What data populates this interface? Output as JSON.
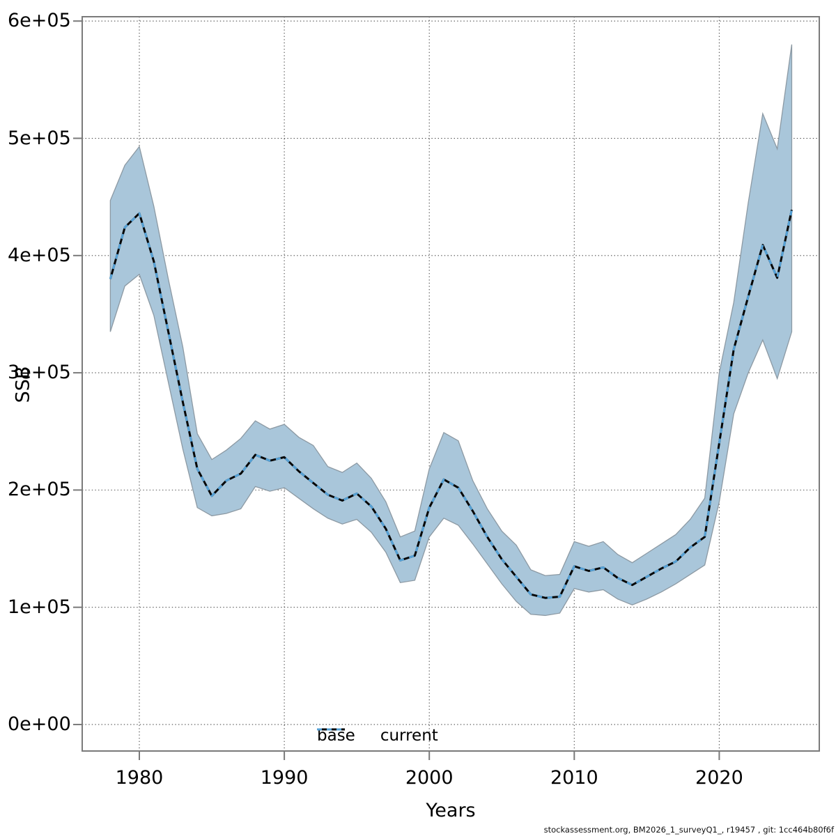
{
  "chart_data": {
    "type": "line",
    "title": "",
    "xlabel": "Years",
    "ylabel": "SSB",
    "grid": "dotted",
    "legend_position": "bottom-center",
    "xlim": [
      1976.06,
      2026.9
    ],
    "ylim": [
      -22600,
      603700
    ],
    "x_ticks": [
      {
        "value": 1980,
        "label": "1980"
      },
      {
        "value": 1990,
        "label": "1990"
      },
      {
        "value": 2000,
        "label": "2000"
      },
      {
        "value": 2010,
        "label": "2010"
      },
      {
        "value": 2020,
        "label": "2020"
      }
    ],
    "y_ticks": [
      {
        "value": 0,
        "label": "0e+00"
      },
      {
        "value": 100000,
        "label": "1e+05"
      },
      {
        "value": 200000,
        "label": "2e+05"
      },
      {
        "value": 300000,
        "label": "3e+05"
      },
      {
        "value": 400000,
        "label": "4e+05"
      },
      {
        "value": 500000,
        "label": "5e+05"
      },
      {
        "value": 600000,
        "label": "6e+05"
      }
    ],
    "x_years": [
      1978,
      1979,
      1980,
      1981,
      1982,
      1983,
      1984,
      1985,
      1986,
      1987,
      1988,
      1989,
      1990,
      1991,
      1992,
      1993,
      1994,
      1995,
      1996,
      1997,
      1998,
      1999,
      2000,
      2001,
      2002,
      2003,
      2004,
      2005,
      2006,
      2007,
      2008,
      2009,
      2010,
      2011,
      2012,
      2013,
      2014,
      2015,
      2016,
      2017,
      2018,
      2019,
      2020,
      2021,
      2022,
      2023,
      2024,
      2025
    ],
    "median": [
      380000,
      424000,
      436000,
      395000,
      335000,
      275000,
      218000,
      195000,
      208000,
      214000,
      230000,
      225000,
      228000,
      216000,
      206000,
      196000,
      191000,
      197000,
      186000,
      167000,
      140000,
      144000,
      185000,
      209000,
      202000,
      182000,
      160000,
      141000,
      126000,
      111000,
      108000,
      109000,
      135000,
      131000,
      134000,
      125000,
      119000,
      126000,
      133000,
      139000,
      151000,
      160000,
      240000,
      320000,
      365000,
      409000,
      381000,
      439000
    ],
    "band_lower": [
      335000,
      374000,
      384000,
      349000,
      292000,
      235000,
      185000,
      178000,
      180000,
      184000,
      203000,
      199000,
      202000,
      193000,
      184000,
      176000,
      171000,
      175000,
      164000,
      147000,
      121000,
      123000,
      160000,
      176000,
      170000,
      154000,
      137000,
      120000,
      105000,
      94000,
      93000,
      95000,
      116000,
      113000,
      115000,
      107000,
      102000,
      107000,
      113000,
      120000,
      128000,
      136000,
      190000,
      265000,
      300000,
      328000,
      295000,
      335000
    ],
    "band_upper": [
      447000,
      477000,
      493000,
      442000,
      380000,
      322000,
      248000,
      226000,
      234000,
      244000,
      259000,
      252000,
      256000,
      245000,
      238000,
      220000,
      215000,
      223000,
      210000,
      190000,
      160000,
      165000,
      218000,
      249000,
      242000,
      208000,
      184000,
      165000,
      153000,
      132000,
      127000,
      128000,
      156000,
      152000,
      156000,
      145000,
      138000,
      146000,
      154000,
      162000,
      175000,
      193000,
      300000,
      360000,
      445000,
      521000,
      491000,
      580000
    ],
    "series": [
      {
        "name": "base",
        "line_style": "solid",
        "color": "#000000",
        "values_ref": "median"
      },
      {
        "name": "current",
        "line_style": "dotted",
        "color": "#55A1D6",
        "values_ref": "median"
      }
    ],
    "colors": {
      "band_fill": "#A9C6DA",
      "band_edge": "#8C99A3",
      "base_line": "#050505",
      "current_line": "#55A1D6",
      "grid": "#4d4d4d",
      "frame": "#7a7a7a"
    }
  },
  "legend": {
    "items": [
      {
        "label": "base"
      },
      {
        "label": "current"
      }
    ]
  },
  "footer": {
    "text": "stockassessment.org, BM2026_1_surveyQ1_, r19457 , git: 1cc464b80f6f"
  }
}
